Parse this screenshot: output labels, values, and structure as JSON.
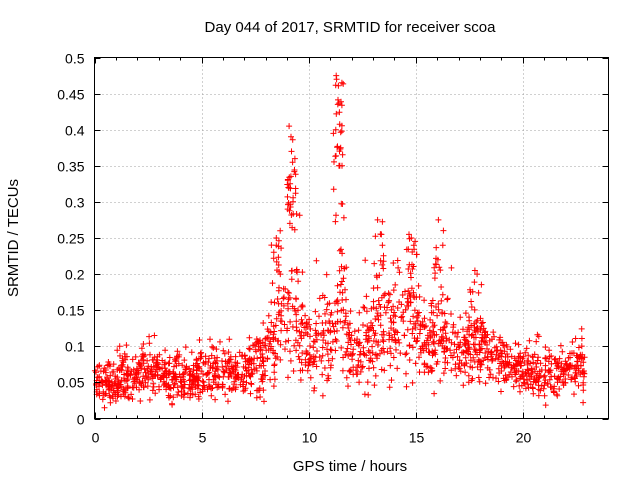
{
  "chart_data": {
    "type": "scatter",
    "title": "Day 044 of 2017, SRMTID for receiver scoa",
    "xlabel": "GPS time / hours",
    "ylabel": "SRMTID / TECUs",
    "xlim": [
      0,
      24
    ],
    "ylim": [
      0,
      0.5
    ],
    "xticks": [
      0,
      5,
      10,
      15,
      20
    ],
    "xtick_labels": [
      "0",
      "5",
      "10",
      "15",
      "20"
    ],
    "yticks": [
      0,
      0.05,
      0.1,
      0.15,
      0.2,
      0.25,
      0.3,
      0.35,
      0.4,
      0.45,
      0.5
    ],
    "ytick_labels": [
      "0",
      "0.05",
      "0.1",
      "0.15",
      "0.2",
      "0.25",
      "0.3",
      "0.35",
      "0.4",
      "0.45",
      "0.5"
    ],
    "grid": true,
    "marker": "plus",
    "series": [
      {
        "name": "SRMTID",
        "color": "#ff0000",
        "x_range": [
          0,
          22.9
        ],
        "envelope": [
          {
            "x": 0,
            "typical": 0.05,
            "spread": 0.02,
            "max": 0.085
          },
          {
            "x": 1,
            "typical": 0.05,
            "spread": 0.025,
            "max": 0.11
          },
          {
            "x": 2,
            "typical": 0.06,
            "spread": 0.025,
            "max": 0.11
          },
          {
            "x": 3,
            "typical": 0.06,
            "spread": 0.025,
            "max": 0.12
          },
          {
            "x": 4,
            "typical": 0.055,
            "spread": 0.025,
            "max": 0.1
          },
          {
            "x": 5,
            "typical": 0.06,
            "spread": 0.025,
            "max": 0.115
          },
          {
            "x": 6,
            "typical": 0.065,
            "spread": 0.025,
            "max": 0.11
          },
          {
            "x": 7,
            "typical": 0.065,
            "spread": 0.025,
            "max": 0.11
          },
          {
            "x": 8,
            "typical": 0.085,
            "spread": 0.035,
            "max": 0.14
          },
          {
            "x": 8.5,
            "typical": 0.12,
            "spread": 0.05,
            "max": 0.26
          },
          {
            "x": 9,
            "typical": 0.14,
            "spread": 0.06,
            "max": 0.28
          },
          {
            "x": 9.3,
            "typical": 0.15,
            "spread": 0.07,
            "max": 0.405
          },
          {
            "x": 10,
            "typical": 0.1,
            "spread": 0.04,
            "max": 0.24
          },
          {
            "x": 11,
            "typical": 0.11,
            "spread": 0.05,
            "max": 0.27
          },
          {
            "x": 11.5,
            "typical": 0.17,
            "spread": 0.07,
            "max": 0.475
          },
          {
            "x": 12,
            "typical": 0.09,
            "spread": 0.04,
            "max": 0.2
          },
          {
            "x": 13.3,
            "typical": 0.12,
            "spread": 0.05,
            "max": 0.275
          },
          {
            "x": 14.7,
            "typical": 0.14,
            "spread": 0.06,
            "max": 0.255
          },
          {
            "x": 15.5,
            "typical": 0.1,
            "spread": 0.04,
            "max": 0.2
          },
          {
            "x": 16.2,
            "typical": 0.12,
            "spread": 0.05,
            "max": 0.275
          },
          {
            "x": 17,
            "typical": 0.09,
            "spread": 0.035,
            "max": 0.17
          },
          {
            "x": 17.8,
            "typical": 0.1,
            "spread": 0.04,
            "max": 0.21
          },
          {
            "x": 19,
            "typical": 0.08,
            "spread": 0.03,
            "max": 0.13
          },
          {
            "x": 20,
            "typical": 0.065,
            "spread": 0.025,
            "max": 0.11
          },
          {
            "x": 21,
            "typical": 0.06,
            "spread": 0.025,
            "max": 0.12
          },
          {
            "x": 22,
            "typical": 0.06,
            "spread": 0.025,
            "max": 0.12
          },
          {
            "x": 22.9,
            "typical": 0.07,
            "spread": 0.03,
            "max": 0.135
          }
        ],
        "peaks": [
          {
            "x": 9.2,
            "values": [
              0.405,
              0.37,
              0.36,
              0.355,
              0.33,
              0.325,
              0.32
            ]
          },
          {
            "x": 11.4,
            "values": [
              0.475,
              0.47,
              0.465,
              0.435,
              0.4,
              0.375,
              0.35
            ]
          },
          {
            "x": 8.5,
            "values": [
              0.26,
              0.25,
              0.24
            ]
          },
          {
            "x": 13.3,
            "values": [
              0.275,
              0.255,
              0.24
            ]
          },
          {
            "x": 14.8,
            "values": [
              0.255,
              0.25,
              0.24
            ]
          },
          {
            "x": 16.1,
            "values": [
              0.275,
              0.24,
              0.22
            ]
          },
          {
            "x": 17.7,
            "values": [
              0.205,
              0.2,
              0.175
            ]
          }
        ]
      }
    ]
  }
}
